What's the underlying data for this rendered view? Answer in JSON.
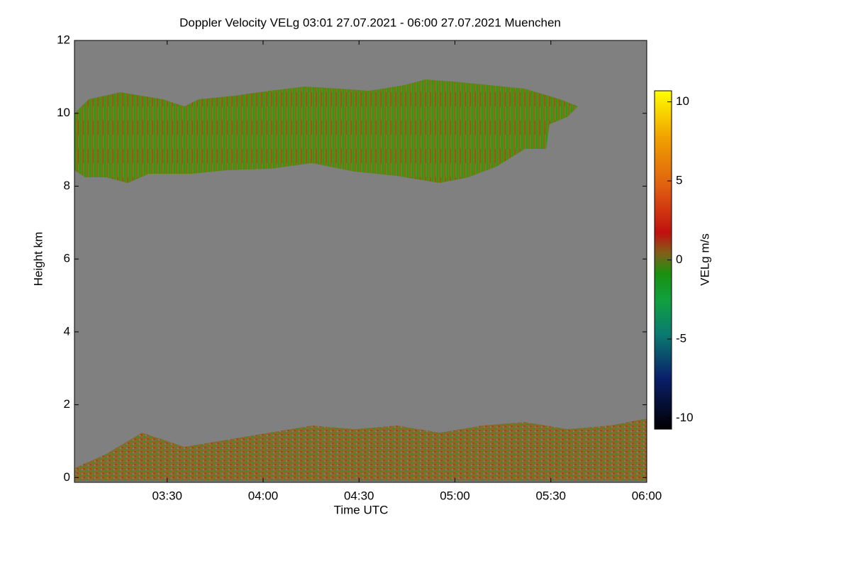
{
  "chart_data": {
    "type": "heatmap",
    "title": "Doppler Velocity VELg   03:01 27.07.2021 - 06:00 27.07.2021 Muenchen",
    "x_label": "Time UTC",
    "y_label": "Height km",
    "xlim": [
      181,
      360
    ],
    "xticks": [
      {
        "value": 210,
        "label": "03:30"
      },
      {
        "value": 240,
        "label": "04:00"
      },
      {
        "value": 270,
        "label": "04:30"
      },
      {
        "value": 300,
        "label": "05:00"
      },
      {
        "value": 330,
        "label": "05:30"
      },
      {
        "value": 360,
        "label": "06:00"
      }
    ],
    "ylim": [
      -0.13,
      12
    ],
    "yticks": [
      0,
      2,
      4,
      6,
      8,
      10,
      12
    ],
    "colorbar": {
      "label": "VELg m/s",
      "clim": [
        -10.7,
        10.7
      ],
      "ticks": [
        -10,
        -5,
        0,
        5,
        10
      ]
    }
  }
}
